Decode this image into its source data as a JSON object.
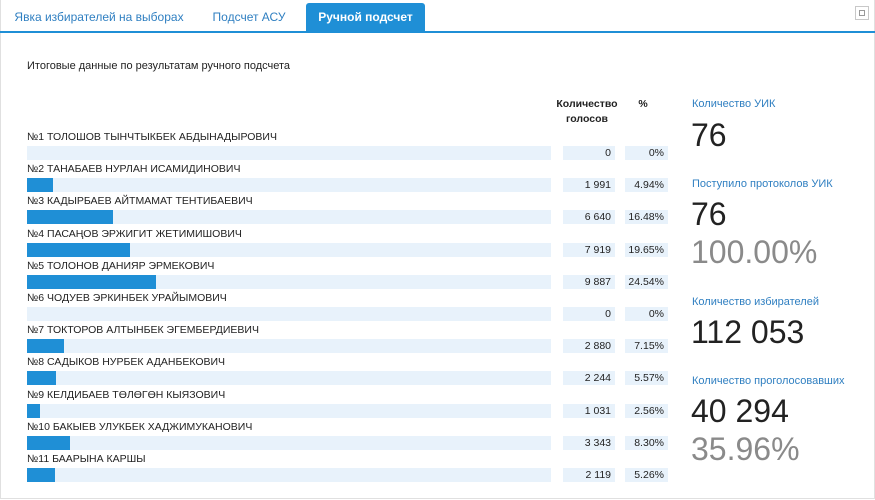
{
  "tabs": [
    {
      "label": "Явка избирателей на выборах"
    },
    {
      "label": "Подсчет АСУ"
    },
    {
      "label": "Ручной подсчет"
    }
  ],
  "subtitle": "Итоговые данные по результатам ручного подсчета",
  "table_headers": {
    "votes": "Количество голосов",
    "percent": "%"
  },
  "candidates": [
    {
      "name": "№1 ТОЛОШОВ ТЫНЧТЫКБЕК АБДЫНАДЫРОВИЧ",
      "votes": "0",
      "percent": "0%",
      "share": 0
    },
    {
      "name": "№2 ТАНАБАЕВ НУРЛАН ИСАМИДИНОВИЧ",
      "votes": "1 991",
      "percent": "4.94%",
      "share": 4.94
    },
    {
      "name": "№3 КАДЫРБАЕВ АЙТМАМАТ ТЕНТИБАЕВИЧ",
      "votes": "6 640",
      "percent": "16.48%",
      "share": 16.48
    },
    {
      "name": "№4 ПАСАҢОВ ЭРЖИГИТ ЖЕТИМИШОВИЧ",
      "votes": "7 919",
      "percent": "19.65%",
      "share": 19.65
    },
    {
      "name": "№5 ТОЛОНОВ ДАНИЯР ЭРМЕКОВИЧ",
      "votes": "9 887",
      "percent": "24.54%",
      "share": 24.54
    },
    {
      "name": "№6 ЧОДУЕВ ЭРКИНБЕК УРАЙЫМОВИЧ",
      "votes": "0",
      "percent": "0%",
      "share": 0
    },
    {
      "name": "№7 ТОКТОРОВ АЛТЫНБЕК ЭГЕМБЕРДИЕВИЧ",
      "votes": "2 880",
      "percent": "7.15%",
      "share": 7.15
    },
    {
      "name": "№8 САДЫКОВ НУРБЕК АДАНБЕКОВИЧ",
      "votes": "2 244",
      "percent": "5.57%",
      "share": 5.57
    },
    {
      "name": "№9 КЕЛДИБАЕВ ТӨЛӨГӨН КЫЯЗОВИЧ",
      "votes": "1 031",
      "percent": "2.56%",
      "share": 2.56
    },
    {
      "name": "№10 БАКЫЕВ УЛУКБЕК ХАДЖИМУКАНОВИЧ",
      "votes": "3 343",
      "percent": "8.30%",
      "share": 8.3
    },
    {
      "name": "№11 БААРЫНА КАРШЫ",
      "votes": "2 119",
      "percent": "5.26%",
      "share": 5.26
    }
  ],
  "stats": {
    "uik_label": "Количество УИК",
    "uik_value": "76",
    "protocols_label": "Поступило протоколов УИК",
    "protocols_value": "76",
    "protocols_percent": "100.00%",
    "voters_label": "Количество избирателей",
    "voters_value": "112 053",
    "voted_label": "Количество проголосовавших",
    "voted_value": "40 294",
    "voted_percent": "35.96%"
  },
  "colors": {
    "accent": "#1f8fd6",
    "track": "#e8f2fb",
    "label": "#2f7fc1"
  }
}
